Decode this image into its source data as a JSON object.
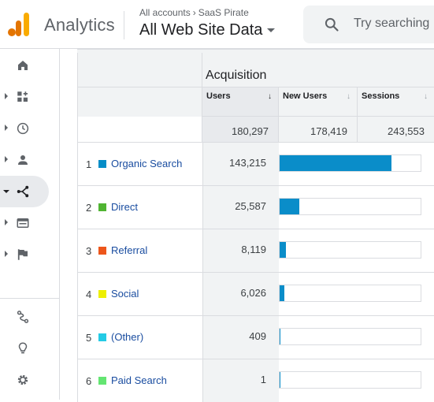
{
  "header": {
    "app_name": "Analytics",
    "account_path": [
      "All accounts",
      "SaaS Pirate"
    ],
    "view_name": "All Web Site Data",
    "search_placeholder": "Try searching"
  },
  "sidebar": {
    "items": [
      {
        "icon": "home-icon",
        "expandable": false,
        "active": false
      },
      {
        "icon": "customization-icon",
        "expandable": true,
        "active": false
      },
      {
        "icon": "realtime-clock-icon",
        "expandable": true,
        "active": false
      },
      {
        "icon": "audience-person-icon",
        "expandable": true,
        "active": false
      },
      {
        "icon": "acquisition-icon",
        "expandable": true,
        "active": true
      },
      {
        "icon": "behavior-icon",
        "expandable": true,
        "active": false
      },
      {
        "icon": "conversions-flag-icon",
        "expandable": true,
        "active": false
      }
    ],
    "bottom_items": [
      {
        "icon": "attribution-icon"
      },
      {
        "icon": "discover-lightbulb-icon"
      },
      {
        "icon": "admin-gear-icon"
      }
    ]
  },
  "table": {
    "group_title": "Acquisition",
    "columns": [
      {
        "label": "Users",
        "sorted": true
      },
      {
        "label": "New Users",
        "sorted": false
      },
      {
        "label": "Sessions",
        "sorted": false
      }
    ],
    "totals": [
      "180,297",
      "178,419",
      "243,553"
    ],
    "rows": [
      {
        "index": "1",
        "label": "Organic Search",
        "users": "143,215",
        "share": 0.7943,
        "color": "#058dc7"
      },
      {
        "index": "2",
        "label": "Direct",
        "users": "25,587",
        "share": 0.1419,
        "color": "#50b432"
      },
      {
        "index": "3",
        "label": "Referral",
        "users": "8,119",
        "share": 0.045,
        "color": "#ed561b"
      },
      {
        "index": "4",
        "label": "Social",
        "users": "6,026",
        "share": 0.0334,
        "color": "#edef00"
      },
      {
        "index": "5",
        "label": "(Other)",
        "users": "409",
        "share": 0.0023,
        "color": "#24cbe5"
      },
      {
        "index": "6",
        "label": "Paid Search",
        "users": "1",
        "share": 1e-05,
        "color": "#64e572"
      }
    ]
  },
  "colors": {
    "bar": "#0a8dc9",
    "link": "#1a4da0"
  }
}
